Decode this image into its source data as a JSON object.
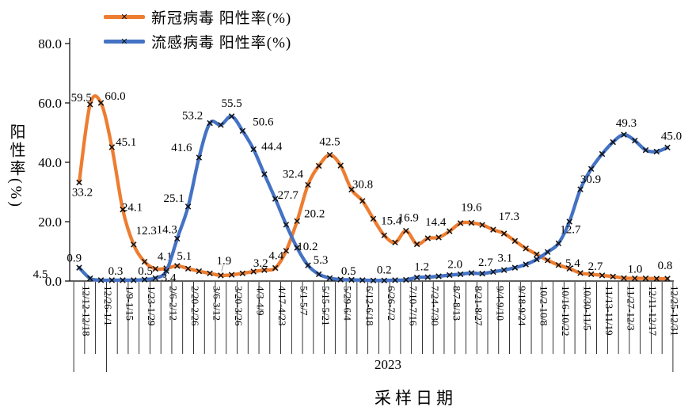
{
  "legend": [
    {
      "label": "新冠病毒 阳性率(%)",
      "color": "#ED7D31"
    },
    {
      "label": "流感病毒 阳性率(%)",
      "color": "#4472C4"
    }
  ],
  "y_axis": {
    "title": "阳性率(%)",
    "ticks": [
      "0.0",
      "20.0",
      "40.0",
      "60.0",
      "80.0"
    ]
  },
  "x_axis": {
    "title": "采样日期",
    "year_label": "2023",
    "label_interval": 2,
    "tick_labels": [
      "12/12-12/18",
      "12/26-1/1",
      "1/9-1/15",
      "1/23-1/29",
      "2/6-2/12",
      "2/20-2/26",
      "3/6-3/12",
      "3/20-3/26",
      "4/3-4/9",
      "4/17-4/23",
      "5/1-5/7",
      "5/15-5/21",
      "5/29-6/4",
      "6/12-6/18",
      "6/26-7/2",
      "7/10-7/16",
      "7/24-7/30",
      "8/7-8/13",
      "8/21-8/27",
      "9/4-9/10",
      "9/18-9/24",
      "10/2-10/8",
      "10/16-10/22",
      "10/30-11/5",
      "11/13-11/19",
      "11/27-12/3",
      "12/11-12/17",
      "12/25-12/31"
    ]
  },
  "chart_data": {
    "type": "line",
    "title": "",
    "xlabel": "采样日期",
    "ylabel": "阳性率(%)",
    "ylim": [
      0,
      80
    ],
    "n_points": 55,
    "grid": false,
    "legend_position": "top-left",
    "x_tick_labels_shown_every": 2,
    "categories_shown": [
      "12/12-12/18",
      "12/26-1/1",
      "1/9-1/15",
      "1/23-1/29",
      "2/6-2/12",
      "2/20-2/26",
      "3/6-3/12",
      "3/20-3/26",
      "4/3-4/9",
      "4/17-4/23",
      "5/1-5/7",
      "5/15-5/21",
      "5/29-6/4",
      "6/12-6/18",
      "6/26-7/2",
      "7/10-7/16",
      "7/24-7/30",
      "8/7-8/13",
      "8/21-8/27",
      "9/4-9/10",
      "9/18-9/24",
      "10/2-10/8",
      "10/16-10/22",
      "10/30-11/5",
      "11/13-11/19",
      "11/27-12/3",
      "12/11-12/17",
      "12/25-12/31"
    ],
    "series": [
      {
        "name": "新冠病毒 阳性率(%)",
        "color": "#ED7D31",
        "marker": "x",
        "values": [
          33.2,
          59.5,
          60.0,
          45.1,
          24.1,
          12.3,
          6.5,
          4.1,
          4.3,
          5.1,
          4.2,
          3.3,
          2.6,
          1.9,
          2.1,
          2.6,
          3.2,
          3.7,
          4.4,
          10.2,
          20.2,
          32.4,
          38.8,
          42.5,
          38.9,
          30.8,
          27.0,
          21.0,
          15.4,
          13.0,
          16.9,
          12.4,
          14.4,
          14.7,
          16.8,
          19.5,
          19.6,
          18.9,
          17.3,
          16.0,
          13.5,
          11.0,
          9.0,
          7.0,
          5.4,
          4.2,
          2.7,
          2.3,
          1.9,
          1.5,
          1.0,
          0.9,
          0.9,
          0.8,
          0.8
        ],
        "labeled": [
          {
            "i": 0,
            "dx": 4,
            "dy": 17
          },
          {
            "i": 1,
            "dx": -11,
            "dy": -4
          },
          {
            "i": 2,
            "dx": 18,
            "dy": -4
          },
          {
            "i": 3,
            "dx": 18,
            "dy": -2
          },
          {
            "i": 4,
            "dx": 12,
            "dy": 2
          },
          {
            "i": 5,
            "dx": 16,
            "dy": -13
          },
          {
            "i": 7,
            "dx": 12,
            "dy": -11
          },
          {
            "i": 9,
            "dx": 9,
            "dy": -8
          },
          {
            "i": 13,
            "dx": 4,
            "dy": -14,
            "leader": true
          },
          {
            "i": 16,
            "dx": 9,
            "dy": -6
          },
          {
            "i": 18,
            "dx": 1,
            "dy": -11
          },
          {
            "i": 19,
            "dx": 27,
            "dy": -1
          },
          {
            "i": 20,
            "dx": 22,
            "dy": -5
          },
          {
            "i": 21,
            "dx": -19,
            "dy": -9
          },
          {
            "i": 23,
            "dx": 0,
            "dy": -12
          },
          {
            "i": 25,
            "dx": 14,
            "dy": -2
          },
          {
            "i": 28,
            "dx": 9,
            "dy": -14
          },
          {
            "i": 30,
            "dx": 3,
            "dy": -12
          },
          {
            "i": 32,
            "dx": 10,
            "dy": -16
          },
          {
            "i": 36,
            "dx": 0,
            "dy": -15
          },
          {
            "i": 38,
            "dx": 20,
            "dy": -12
          },
          {
            "i": 44,
            "dx": 18,
            "dy": 2
          },
          {
            "i": 46,
            "dx": 19,
            "dy": -4
          },
          {
            "i": 50,
            "dx": 14,
            "dy": -7
          },
          {
            "i": 54,
            "dx": -3,
            "dy": -12
          }
        ]
      },
      {
        "name": "流感病毒 阳性率(%)",
        "color": "#4472C4",
        "marker": "x",
        "values": [
          4.5,
          0.9,
          0.3,
          0.3,
          0.3,
          0.3,
          0.5,
          1.0,
          3.4,
          14.3,
          25.1,
          41.6,
          53.2,
          52.6,
          55.5,
          50.6,
          44.4,
          36.0,
          27.7,
          19.0,
          11.2,
          5.3,
          2.3,
          1.0,
          0.5,
          0.4,
          0.3,
          0.2,
          0.2,
          0.3,
          0.4,
          1.2,
          1.3,
          1.6,
          2.0,
          2.3,
          2.7,
          2.5,
          3.1,
          3.7,
          4.5,
          5.6,
          7.3,
          9.8,
          12.7,
          20.0,
          30.9,
          37.8,
          42.8,
          46.8,
          49.3,
          47.3,
          44.1,
          43.6,
          45.0
        ],
        "labeled": [
          {
            "i": 0,
            "dx": -49,
            "dy": 13
          },
          {
            "i": 1,
            "dx": -20,
            "dy": -21
          },
          {
            "i": 4,
            "dx": -9,
            "dy": -7
          },
          {
            "i": 6,
            "dx": 1,
            "dy": -6
          },
          {
            "i": 8,
            "dx": 3,
            "dy": 13
          },
          {
            "i": 9,
            "dx": -13,
            "dy": -7
          },
          {
            "i": 10,
            "dx": -18,
            "dy": -6
          },
          {
            "i": 11,
            "dx": -22,
            "dy": -8
          },
          {
            "i": 12,
            "dx": -22,
            "dy": -5
          },
          {
            "i": 14,
            "dx": 0,
            "dy": -12
          },
          {
            "i": 15,
            "dx": 26,
            "dy": -7
          },
          {
            "i": 16,
            "dx": 23,
            "dy": 1
          },
          {
            "i": 18,
            "dx": 16,
            "dy": 0
          },
          {
            "i": 21,
            "dx": 16,
            "dy": -2
          },
          {
            "i": 24,
            "dx": 10,
            "dy": -6
          },
          {
            "i": 28,
            "dx": 0,
            "dy": -9
          },
          {
            "i": 31,
            "dx": 6,
            "dy": -9
          },
          {
            "i": 34,
            "dx": 7,
            "dy": -9
          },
          {
            "i": 36,
            "dx": 18,
            "dy": -9
          },
          {
            "i": 38,
            "dx": 15,
            "dy": -13
          },
          {
            "i": 44,
            "dx": 15,
            "dy": -13
          },
          {
            "i": 46,
            "dx": 13,
            "dy": -8
          },
          {
            "i": 50,
            "dx": 3,
            "dy": -10
          },
          {
            "i": 54,
            "dx": 5,
            "dy": -10
          }
        ]
      }
    ]
  }
}
